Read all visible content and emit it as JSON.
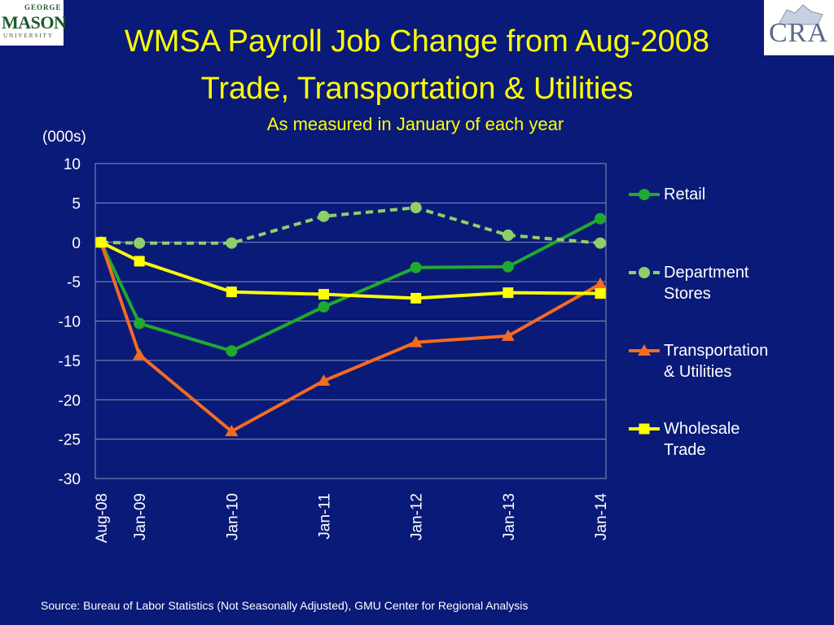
{
  "logos": {
    "left": {
      "top": "GEORGE",
      "main": "MASON",
      "bottom": "UNIVERSITY"
    },
    "right": {
      "text": "CRA"
    }
  },
  "chart_data": {
    "type": "line",
    "title": "WMSA Payroll Job Change from Aug-2008",
    "title_line2": "Trade, Transportation & Utilities",
    "subtitle": "As measured in January of each year",
    "ylabel": "(000s)",
    "xlabel": "",
    "x": [
      "Aug-08",
      "Jan-09",
      "Jan-10",
      "Jan-11",
      "Jan-12",
      "Jan-13",
      "Jan-14"
    ],
    "x_months": [
      0,
      5,
      17,
      29,
      41,
      53,
      65
    ],
    "ylim": [
      -30,
      10
    ],
    "yticks": [
      10,
      5,
      0,
      -5,
      -10,
      -15,
      -20,
      -25,
      -30
    ],
    "grid": true,
    "legend_position": "right",
    "series": [
      {
        "name": "Retail",
        "values": [
          0,
          -10.3,
          -13.8,
          -8.2,
          -3.2,
          -3.1,
          3.0
        ],
        "color": "#1faa2e",
        "marker": "circle",
        "dash": "solid"
      },
      {
        "name": "Department Stores",
        "values": [
          0,
          -0.1,
          -0.1,
          3.3,
          4.4,
          0.9,
          -0.1
        ],
        "color": "#8fcf6a",
        "marker": "circle",
        "dash": "dashed"
      },
      {
        "name": "Transportation & Utilities",
        "values": [
          0,
          -14.3,
          -24.0,
          -17.6,
          -12.7,
          -11.9,
          -5.3
        ],
        "color": "#f36b21",
        "marker": "triangle",
        "dash": "solid"
      },
      {
        "name": "Wholesale Trade",
        "values": [
          0,
          -2.4,
          -6.3,
          -6.6,
          -7.1,
          -6.4,
          -6.5
        ],
        "color": "#ffff00",
        "marker": "square",
        "dash": "solid"
      }
    ],
    "legend_lines": [
      [
        "Retail"
      ],
      [
        "Department",
        "Stores"
      ],
      [
        "Transportation",
        "& Utilities"
      ],
      [
        "Wholesale",
        "Trade"
      ]
    ]
  },
  "source": "Source: Bureau of Labor Statistics (Not Seasonally Adjusted), GMU Center for Regional Analysis"
}
